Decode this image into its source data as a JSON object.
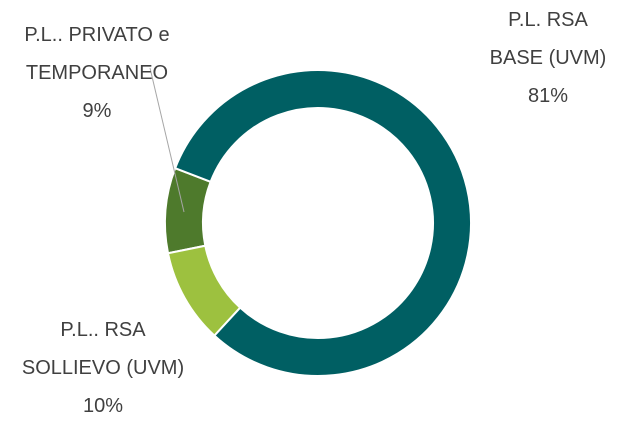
{
  "chart_data": {
    "type": "donut",
    "categories": [
      "P.L. RSA\nBASE (UVM)",
      "P.L.. RSA\nSOLLIEVO (UVM)",
      "P.L.. PRIVATO e\nTEMPORANEO"
    ],
    "values": [
      81,
      10,
      9
    ],
    "value_labels": [
      "81%",
      "10%",
      "9%"
    ],
    "colors": [
      "#005f63",
      "#9dc13f",
      "#4e7a2c"
    ]
  }
}
